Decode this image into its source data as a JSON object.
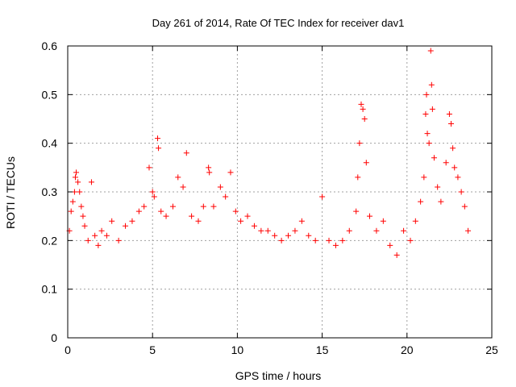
{
  "chart_data": {
    "type": "scatter",
    "title": "Day 261 of 2014, Rate Of TEC Index for receiver dav1",
    "xlabel": "GPS time / hours",
    "ylabel": "ROTI / TECUs",
    "xlim": [
      0,
      25
    ],
    "ylim": [
      0,
      0.6
    ],
    "x_ticks": [
      "0",
      "5",
      "10",
      "15",
      "20",
      "25"
    ],
    "x_tick_values": [
      0,
      5,
      10,
      15,
      20,
      25
    ],
    "y_ticks": [
      "0",
      "0.1",
      "0.2",
      "0.3",
      "0.4",
      "0.5",
      "0.6"
    ],
    "y_tick_values": [
      0,
      0.1,
      0.2,
      0.3,
      0.4,
      0.5,
      0.6
    ],
    "grid": true,
    "marker": "+",
    "series": [
      {
        "name": "dav1",
        "color": "#ff0000",
        "points": [
          [
            0.1,
            0.22
          ],
          [
            0.2,
            0.26
          ],
          [
            0.3,
            0.28
          ],
          [
            0.4,
            0.3
          ],
          [
            0.45,
            0.33
          ],
          [
            0.5,
            0.34
          ],
          [
            0.6,
            0.32
          ],
          [
            0.7,
            0.3
          ],
          [
            0.8,
            0.27
          ],
          [
            0.9,
            0.25
          ],
          [
            1.0,
            0.23
          ],
          [
            1.2,
            0.2
          ],
          [
            1.4,
            0.32
          ],
          [
            1.6,
            0.21
          ],
          [
            1.8,
            0.19
          ],
          [
            2.0,
            0.22
          ],
          [
            2.3,
            0.21
          ],
          [
            2.6,
            0.24
          ],
          [
            3.0,
            0.2
          ],
          [
            3.4,
            0.23
          ],
          [
            3.8,
            0.24
          ],
          [
            4.2,
            0.26
          ],
          [
            4.5,
            0.27
          ],
          [
            4.8,
            0.35
          ],
          [
            5.0,
            0.3
          ],
          [
            5.1,
            0.29
          ],
          [
            5.3,
            0.41
          ],
          [
            5.35,
            0.39
          ],
          [
            5.5,
            0.26
          ],
          [
            5.8,
            0.25
          ],
          [
            6.2,
            0.27
          ],
          [
            6.5,
            0.33
          ],
          [
            6.8,
            0.31
          ],
          [
            7.0,
            0.38
          ],
          [
            7.3,
            0.25
          ],
          [
            7.7,
            0.24
          ],
          [
            8.0,
            0.27
          ],
          [
            8.3,
            0.35
          ],
          [
            8.35,
            0.34
          ],
          [
            8.6,
            0.27
          ],
          [
            9.0,
            0.31
          ],
          [
            9.3,
            0.29
          ],
          [
            9.6,
            0.34
          ],
          [
            9.9,
            0.26
          ],
          [
            10.2,
            0.24
          ],
          [
            10.6,
            0.25
          ],
          [
            11.0,
            0.23
          ],
          [
            11.4,
            0.22
          ],
          [
            11.8,
            0.22
          ],
          [
            12.2,
            0.21
          ],
          [
            12.6,
            0.2
          ],
          [
            13.0,
            0.21
          ],
          [
            13.4,
            0.22
          ],
          [
            13.8,
            0.24
          ],
          [
            14.2,
            0.21
          ],
          [
            14.6,
            0.2
          ],
          [
            15.0,
            0.29
          ],
          [
            15.4,
            0.2
          ],
          [
            15.8,
            0.19
          ],
          [
            16.2,
            0.2
          ],
          [
            16.6,
            0.22
          ],
          [
            17.0,
            0.26
          ],
          [
            17.1,
            0.33
          ],
          [
            17.2,
            0.4
          ],
          [
            17.3,
            0.48
          ],
          [
            17.4,
            0.47
          ],
          [
            17.5,
            0.45
          ],
          [
            17.6,
            0.36
          ],
          [
            17.8,
            0.25
          ],
          [
            18.2,
            0.22
          ],
          [
            18.6,
            0.24
          ],
          [
            19.0,
            0.19
          ],
          [
            19.4,
            0.17
          ],
          [
            19.8,
            0.22
          ],
          [
            20.2,
            0.2
          ],
          [
            20.5,
            0.24
          ],
          [
            20.8,
            0.28
          ],
          [
            21.0,
            0.33
          ],
          [
            21.1,
            0.46
          ],
          [
            21.15,
            0.5
          ],
          [
            21.2,
            0.42
          ],
          [
            21.3,
            0.4
          ],
          [
            21.4,
            0.59
          ],
          [
            21.45,
            0.52
          ],
          [
            21.5,
            0.47
          ],
          [
            21.6,
            0.37
          ],
          [
            21.8,
            0.31
          ],
          [
            22.0,
            0.28
          ],
          [
            22.3,
            0.36
          ],
          [
            22.5,
            0.46
          ],
          [
            22.6,
            0.44
          ],
          [
            22.7,
            0.39
          ],
          [
            22.8,
            0.35
          ],
          [
            23.0,
            0.33
          ],
          [
            23.2,
            0.3
          ],
          [
            23.4,
            0.27
          ],
          [
            23.6,
            0.22
          ]
        ]
      }
    ]
  }
}
